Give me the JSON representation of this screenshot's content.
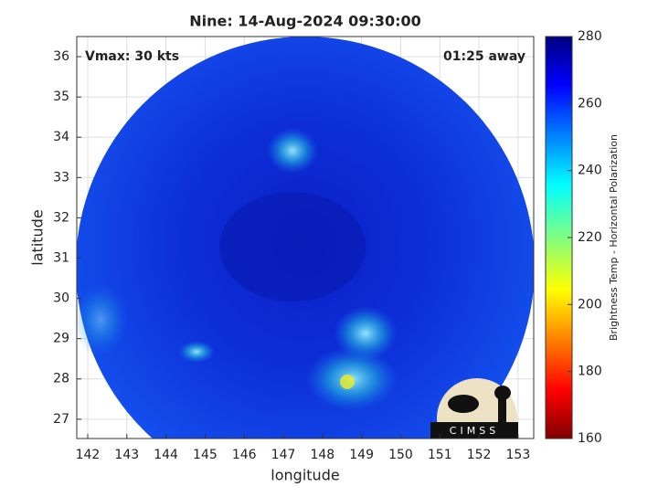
{
  "chart_data": {
    "type": "image",
    "title": "Nine: 14-Aug-2024 09:30:00",
    "annotations": [
      "Vmax: 30 kts",
      "01:25 away"
    ],
    "x_label": "longitude",
    "y_label": "latitude",
    "xlim": [
      141.72,
      153.4
    ],
    "xticks": [
      142,
      143,
      144,
      145,
      146,
      147,
      148,
      149,
      150,
      151,
      152,
      153
    ],
    "ylim": [
      26.52,
      36.5
    ],
    "yticks": [
      27,
      28,
      29,
      30,
      31,
      32,
      33,
      34,
      35,
      36
    ],
    "grid": true,
    "colorbar": {
      "label": "Brightness Temp - Horizontal Polarization",
      "lim": [
        160,
        280
      ],
      "ticks": [
        160,
        180,
        200,
        220,
        240,
        260,
        280
      ]
    },
    "logo": "CIMSS"
  }
}
